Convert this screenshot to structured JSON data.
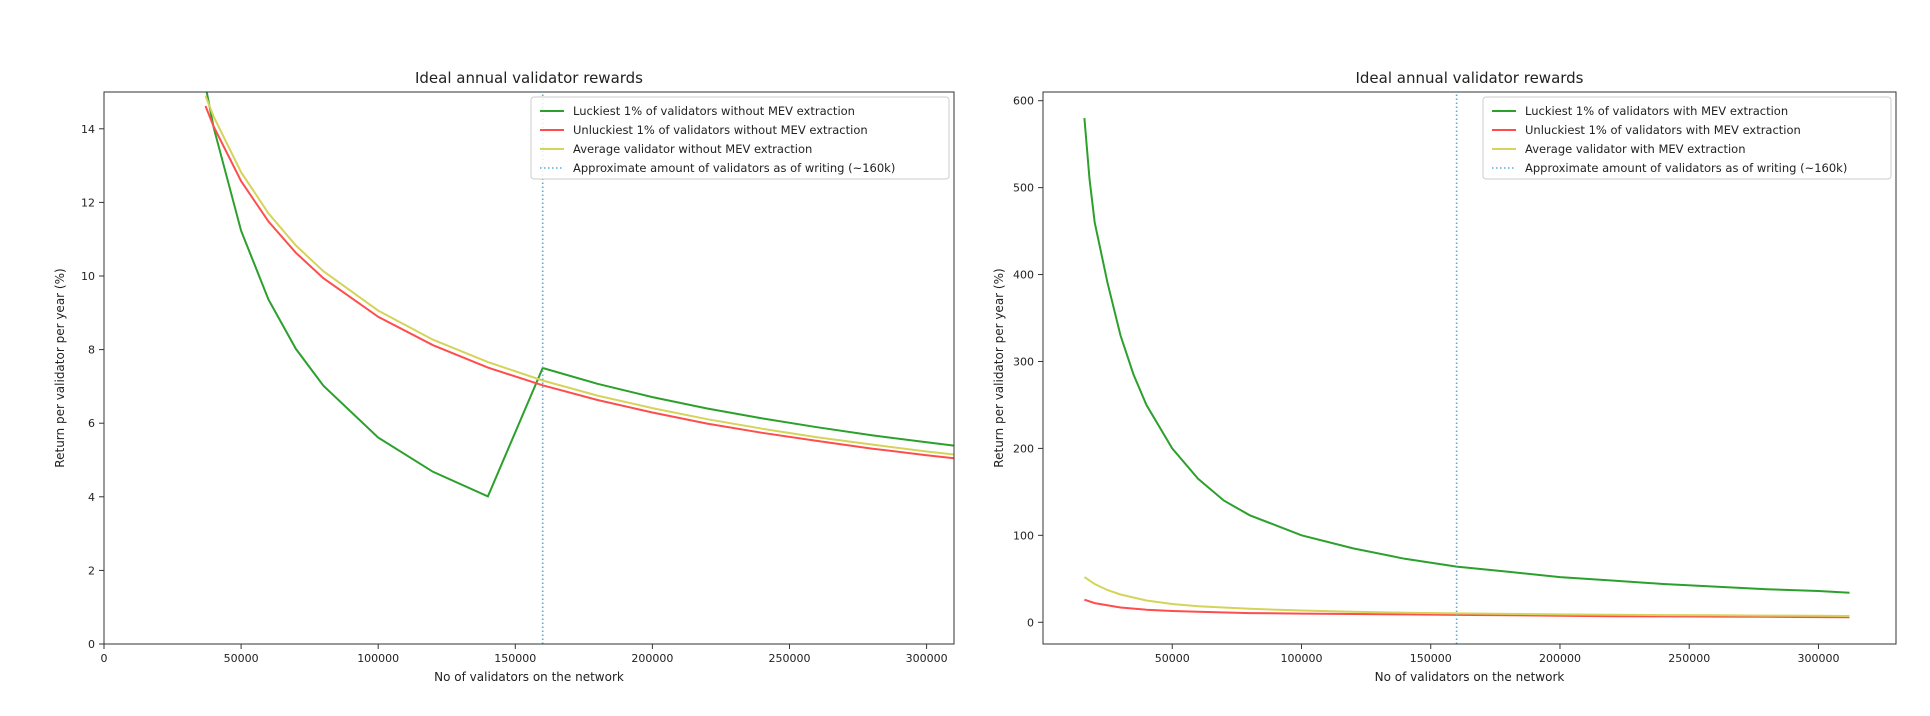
{
  "chart_data": [
    {
      "type": "line",
      "title": "Ideal annual validator rewards",
      "xlabel": "No of validators on the network",
      "ylabel": "Return per validator per year (%)",
      "xlim": [
        0,
        310000
      ],
      "ylim": [
        0,
        15
      ],
      "xticks": [
        0,
        50000,
        100000,
        150000,
        200000,
        250000,
        300000
      ],
      "yticks": [
        0,
        2,
        4,
        6,
        8,
        10,
        12,
        14
      ],
      "grid": false,
      "legend_position": "top-right",
      "series": [
        {
          "name": "Luckiest 1% of validators without MEV extraction",
          "color": "#2ca02c",
          "style": "solid",
          "x": [
            37000,
            40000,
            50000,
            60000,
            70000,
            80000,
            100000,
            120000,
            140000,
            160000,
            180000,
            200000,
            220000,
            240000,
            260000,
            280000,
            300000,
            310000
          ],
          "y": [
            15.17,
            14.03,
            11.23,
            9.36,
            8.02,
            7.02,
            5.61,
            4.68,
            4.01,
            7.5,
            7.07,
            6.71,
            6.4,
            6.13,
            5.89,
            5.67,
            5.48,
            5.39
          ]
        },
        {
          "name": "Unluckiest 1% of validators without MEV extraction",
          "color": "#ff4d4d",
          "style": "solid",
          "x": [
            37000,
            40000,
            50000,
            60000,
            70000,
            80000,
            100000,
            120000,
            140000,
            160000,
            180000,
            200000,
            220000,
            240000,
            260000,
            280000,
            300000,
            310000
          ],
          "y": [
            14.62,
            14.06,
            12.58,
            11.48,
            10.63,
            9.94,
            8.89,
            8.12,
            7.51,
            7.03,
            6.63,
            6.29,
            5.99,
            5.74,
            5.52,
            5.31,
            5.13,
            5.05
          ]
        },
        {
          "name": "Average validator without MEV extraction",
          "color": "#d4d45a",
          "style": "solid",
          "x": [
            37000,
            40000,
            50000,
            60000,
            70000,
            80000,
            100000,
            120000,
            140000,
            160000,
            180000,
            200000,
            220000,
            240000,
            260000,
            280000,
            300000,
            310000
          ],
          "y": [
            14.9,
            14.33,
            12.82,
            11.7,
            10.83,
            10.13,
            9.06,
            8.27,
            7.66,
            7.16,
            6.75,
            6.41,
            6.11,
            5.85,
            5.62,
            5.42,
            5.23,
            5.15
          ]
        },
        {
          "name": "Approximate amount of validators as of writing (~160k)",
          "color": "#5fa8d3",
          "style": "dotted",
          "x": [
            160000,
            160000
          ],
          "y": [
            0,
            15
          ]
        }
      ]
    },
    {
      "type": "line",
      "title": "Ideal annual validator rewards",
      "xlabel": "No of validators on the network",
      "ylabel": "Return per validator per year (%)",
      "xlim": [
        0,
        330000
      ],
      "ylim": [
        -25,
        610
      ],
      "xticks": [
        50000,
        100000,
        150000,
        200000,
        250000,
        300000
      ],
      "yticks": [
        0,
        100,
        200,
        300,
        400,
        500,
        600
      ],
      "grid": false,
      "legend_position": "top-right",
      "series": [
        {
          "name": "Luckiest 1% of validators with MEV extraction",
          "color": "#2ca02c",
          "style": "solid",
          "x": [
            16000,
            18000,
            20000,
            25000,
            30000,
            35000,
            40000,
            50000,
            60000,
            70000,
            80000,
            100000,
            120000,
            140000,
            160000,
            180000,
            200000,
            220000,
            240000,
            260000,
            280000,
            300000,
            312000
          ],
          "y": [
            580,
            510,
            460,
            390,
            330,
            285,
            250,
            200,
            165,
            140,
            123,
            100,
            85,
            73,
            64,
            58,
            52,
            48,
            44,
            41,
            38,
            36,
            34
          ]
        },
        {
          "name": "Unluckiest 1% of validators with MEV extraction",
          "color": "#ff4d4d",
          "style": "solid",
          "x": [
            16000,
            20000,
            30000,
            40000,
            50000,
            60000,
            80000,
            100000,
            120000,
            140000,
            160000,
            180000,
            200000,
            220000,
            240000,
            260000,
            280000,
            300000,
            312000
          ],
          "y": [
            26,
            22,
            17,
            14.5,
            13,
            12,
            10.5,
            10,
            9.5,
            9,
            8.5,
            8,
            7.5,
            7,
            6.8,
            6.5,
            6.3,
            6,
            5.8
          ]
        },
        {
          "name": "Average validator with MEV extraction",
          "color": "#d4d45a",
          "style": "solid",
          "x": [
            16000,
            20000,
            25000,
            30000,
            40000,
            50000,
            60000,
            80000,
            100000,
            120000,
            140000,
            160000,
            180000,
            200000,
            220000,
            240000,
            260000,
            280000,
            300000,
            312000
          ],
          "y": [
            52,
            44,
            37,
            32,
            25,
            21,
            18.5,
            15.5,
            13.5,
            12,
            11,
            10.2,
            9.6,
            9.1,
            8.7,
            8.3,
            8,
            7.7,
            7.4,
            7.2
          ]
        },
        {
          "name": "Approximate amount of validators as of writing (~160k)",
          "color": "#5fa8d3",
          "style": "dotted",
          "x": [
            160000,
            160000
          ],
          "y": [
            -25,
            610
          ]
        }
      ]
    }
  ]
}
